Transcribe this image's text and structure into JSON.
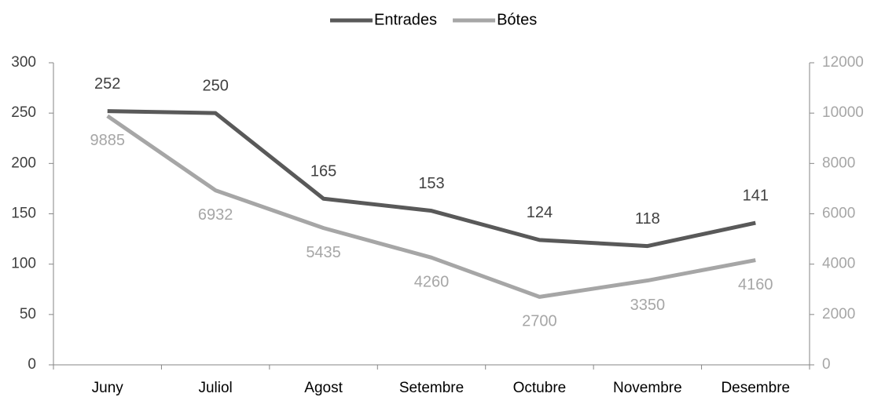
{
  "chart_data": {
    "type": "line",
    "categories": [
      "Juny",
      "Juliol",
      "Agost",
      "Setembre",
      "Octubre",
      "Novembre",
      "Desembre"
    ],
    "series": [
      {
        "name": "Entrades",
        "color": "#595959",
        "values": [
          252,
          250,
          165,
          153,
          124,
          118,
          141
        ]
      },
      {
        "name": "Bótes",
        "color": "#a6a6a6",
        "axis": "y2",
        "values": [
          9885,
          6932,
          5435,
          4260,
          2700,
          3350,
          4160
        ]
      }
    ],
    "ylim": [
      0,
      300
    ],
    "yticks": [
      0,
      50,
      100,
      150,
      200,
      250,
      300
    ],
    "y2lim": [
      0,
      12000
    ],
    "y2ticks": [
      0,
      2000,
      4000,
      6000,
      8000,
      10000,
      12000
    ],
    "legend": "top"
  }
}
